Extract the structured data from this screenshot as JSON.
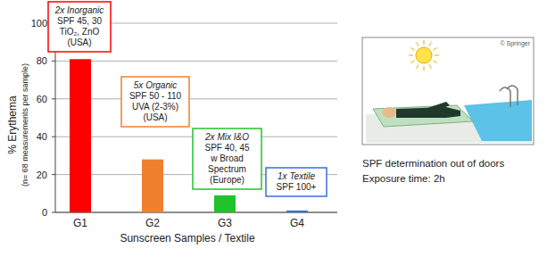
{
  "chart_data": {
    "type": "bar",
    "categories": [
      "G1",
      "G2",
      "G3",
      "G4"
    ],
    "values": [
      81,
      28,
      9,
      1
    ],
    "colors": [
      "#ff0000",
      "#f07f2e",
      "#22c22a",
      "#3a6fd8"
    ],
    "ylim": [
      0,
      100
    ],
    "yticks": [
      0,
      20,
      40,
      60,
      80,
      100
    ],
    "grid": true,
    "ylabel": [
      "% Erythema",
      "(n= 68 measurements per sample)"
    ],
    "xlabel": "Sunscreen Samples / Textile",
    "annotations": [
      {
        "category": "G1",
        "color": "#ff0000",
        "lines": [
          "2x Inorganic",
          "SPF 45, 30",
          "TiO₂, ZnO",
          "(USA)"
        ]
      },
      {
        "category": "G2",
        "color": "#f07f2e",
        "lines": [
          "5x Organic",
          "SPF 50 - 110",
          "UVA (2-3%)",
          "(USA)"
        ]
      },
      {
        "category": "G3",
        "color": "#22c22a",
        "lines": [
          "2x Mix I&O",
          "SPF 40, 45",
          "w Broad",
          "Spectrum",
          "(Europe)"
        ]
      },
      {
        "category": "G4",
        "color": "#3a6fd8",
        "lines": [
          "1x Textile",
          "SPF 100+"
        ]
      }
    ]
  },
  "figure_panel": {
    "copyright": "© Springer",
    "caption": [
      "SPF determination out of doors",
      "Exposure time: 2h"
    ]
  }
}
